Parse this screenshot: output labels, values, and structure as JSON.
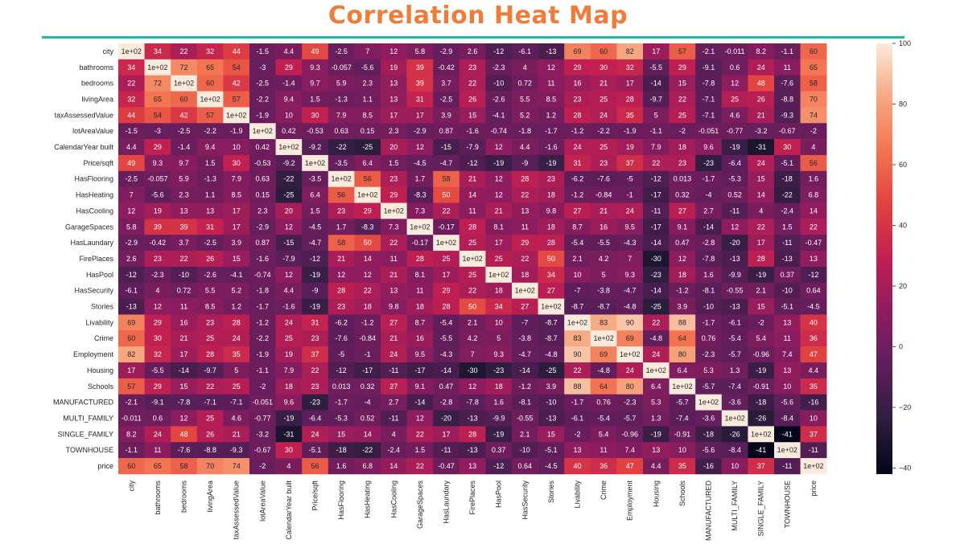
{
  "title": "Correlation Heat Map",
  "colors": {
    "title": "#f07c3c",
    "rule": "#21b9a0"
  },
  "chart_data": {
    "type": "heatmap",
    "title": "Correlation Heat Map",
    "colormap": "rocket",
    "vmin": -42,
    "vmax": 100,
    "colorbar_ticks": [
      100,
      80,
      60,
      40,
      20,
      0,
      -20,
      -40
    ],
    "labels": [
      "city",
      "bathrooms",
      "bedrooms",
      "livingArea",
      "taxAssessedValue",
      "lotAreaValue",
      "CalendarYear built",
      "Price/sqft",
      "HasFlooring",
      "HasHeating",
      "HasCooling",
      "GarageSpaces",
      "HasLaundary",
      "FirePlaces",
      "HasPool",
      "HasSecurity",
      "Stories",
      "Livability",
      "Crime",
      "Employment",
      "Housing",
      "Schools",
      "MANUFACTURED",
      "MULTI_FAMILY",
      "SINGLE_FAMILY",
      "TOWNHOUSE",
      "price"
    ],
    "matrix": [
      [
        "1e+02",
        "34",
        "22",
        "32",
        "44",
        "-1.5",
        "4.4",
        "49",
        "-2.5",
        "7",
        "12",
        "5.8",
        "-2.9",
        "2.6",
        "-12",
        "-6.1",
        "-13",
        "69",
        "60",
        "82",
        "17",
        "57",
        "-2.1",
        "-0.011",
        "8.2",
        "-1.1",
        "60"
      ],
      [
        "34",
        "1e+02",
        "72",
        "65",
        "54",
        "-3",
        "29",
        "9.3",
        "-0.057",
        "-5.6",
        "19",
        "39",
        "-0.42",
        "23",
        "-2.3",
        "4",
        "12",
        "29",
        "30",
        "32",
        "-5.5",
        "29",
        "-9.1",
        "0.6",
        "24",
        "11",
        "65"
      ],
      [
        "22",
        "72",
        "1e+02",
        "60",
        "42",
        "-2.5",
        "-1.4",
        "9.7",
        "5.9",
        "2.3",
        "13",
        "39",
        "3.7",
        "22",
        "-10",
        "0.72",
        "11",
        "16",
        "21",
        "17",
        "-14",
        "15",
        "-7.8",
        "12",
        "48",
        "-7.6",
        "58"
      ],
      [
        "32",
        "65",
        "60",
        "1e+02",
        "57",
        "-2.2",
        "9.4",
        "1.5",
        "-1.3",
        "1.1",
        "13",
        "31",
        "-2.5",
        "26",
        "-2.6",
        "5.5",
        "8.5",
        "23",
        "25",
        "28",
        "-9.7",
        "22",
        "-7.1",
        "25",
        "26",
        "-8.8",
        "70"
      ],
      [
        "44",
        "54",
        "42",
        "57",
        "1e+02",
        "-1.9",
        "10",
        "30",
        "7.9",
        "8.5",
        "17",
        "17",
        "3.9",
        "15",
        "-4.1",
        "5.2",
        "1.2",
        "28",
        "24",
        "35",
        "5",
        "25",
        "-7.1",
        "4.6",
        "21",
        "-9.3",
        "74"
      ],
      [
        "-1.5",
        "-3",
        "-2.5",
        "-2.2",
        "-1.9",
        "1e+02",
        "0.42",
        "-0.53",
        "0.63",
        "0.15",
        "2.3",
        "-2.9",
        "0.87",
        "-1.6",
        "-0.74",
        "-1.8",
        "-1.7",
        "-1.2",
        "-2.2",
        "-1.9",
        "-1.1",
        "-2",
        "-0.051",
        "-0.77",
        "-3.2",
        "-0.67",
        "-2"
      ],
      [
        "4.4",
        "29",
        "-1.4",
        "9.4",
        "10",
        "0.42",
        "1e+02",
        "-9.2",
        "-22",
        "-25",
        "20",
        "12",
        "-15",
        "-7.9",
        "12",
        "4.4",
        "-1.6",
        "24",
        "25",
        "19",
        "7.9",
        "18",
        "9.6",
        "-19",
        "-31",
        "30",
        "4"
      ],
      [
        "49",
        "9.3",
        "9.7",
        "1.5",
        "30",
        "-0.53",
        "-9.2",
        "1e+02",
        "-3.5",
        "6.4",
        "1.5",
        "-4.5",
        "-4.7",
        "-12",
        "-19",
        "-9",
        "-19",
        "31",
        "23",
        "37",
        "22",
        "23",
        "-23",
        "-6.4",
        "24",
        "-5.1",
        "56"
      ],
      [
        "-2.5",
        "-0.057",
        "5.9",
        "-1.3",
        "7.9",
        "0.63",
        "-22",
        "-3.5",
        "1e+02",
        "56",
        "23",
        "1.7",
        "58",
        "21",
        "12",
        "28",
        "23",
        "-6.2",
        "-7.6",
        "-5",
        "-12",
        "0.013",
        "-1.7",
        "-5.3",
        "15",
        "-18",
        "1.6"
      ],
      [
        "7",
        "-5.6",
        "2.3",
        "1.1",
        "8.5",
        "0.15",
        "-25",
        "6.4",
        "56",
        "1e+02",
        "29",
        "-8.3",
        "50",
        "14",
        "12",
        "22",
        "18",
        "-1.2",
        "-0.84",
        "-1",
        "-17",
        "0.32",
        "-4",
        "0.52",
        "14",
        "-22",
        "6.8"
      ],
      [
        "12",
        "19",
        "13",
        "13",
        "17",
        "2.3",
        "20",
        "1.5",
        "23",
        "29",
        "1e+02",
        "7.3",
        "22",
        "11",
        "21",
        "13",
        "9.8",
        "27",
        "21",
        "24",
        "-11",
        "27",
        "2.7",
        "-11",
        "4",
        "-2.4",
        "14"
      ],
      [
        "5.8",
        "39",
        "39",
        "31",
        "17",
        "-2.9",
        "12",
        "-4.5",
        "1.7",
        "-8.3",
        "7.3",
        "1e+02",
        "-0.17",
        "28",
        "8.1",
        "11",
        "18",
        "8.7",
        "16",
        "9.5",
        "-17",
        "9.1",
        "-14",
        "12",
        "22",
        "1.5",
        "22"
      ],
      [
        "-2.9",
        "-0.42",
        "3.7",
        "-2.5",
        "3.9",
        "0.87",
        "-15",
        "-4.7",
        "58",
        "50",
        "22",
        "-0.17",
        "1e+02",
        "25",
        "17",
        "29",
        "28",
        "-5.4",
        "-5.5",
        "-4.3",
        "-14",
        "0.47",
        "-2.8",
        "-20",
        "17",
        "-11",
        "-0.47"
      ],
      [
        "2.6",
        "23",
        "22",
        "26",
        "15",
        "-1.6",
        "-7.9",
        "-12",
        "21",
        "14",
        "11",
        "28",
        "25",
        "1e+02",
        "25",
        "22",
        "50",
        "2.1",
        "4.2",
        "7",
        "-30",
        "12",
        "-7.8",
        "-13",
        "28",
        "-13",
        "13"
      ],
      [
        "-12",
        "-2.3",
        "-10",
        "-2.6",
        "-4.1",
        "-0.74",
        "12",
        "-19",
        "12",
        "12",
        "21",
        "8.1",
        "17",
        "25",
        "1e+02",
        "18",
        "34",
        "10",
        "5",
        "9.3",
        "-23",
        "18",
        "1.6",
        "-9.9",
        "-19",
        "0.37",
        "-12"
      ],
      [
        "-6.1",
        "4",
        "0.72",
        "5.5",
        "5.2",
        "-1.8",
        "4.4",
        "-9",
        "28",
        "22",
        "13",
        "11",
        "29",
        "22",
        "18",
        "1e+02",
        "27",
        "-7",
        "-3.8",
        "-4.7",
        "-14",
        "-1.2",
        "-8.1",
        "-0.55",
        "2.1",
        "-10",
        "0.64"
      ],
      [
        "-13",
        "12",
        "11",
        "8.5",
        "1.2",
        "-1.7",
        "-1.6",
        "-19",
        "23",
        "18",
        "9.8",
        "18",
        "28",
        "50",
        "34",
        "27",
        "1e+02",
        "-8.7",
        "-8.7",
        "-4.8",
        "-25",
        "3.9",
        "-10",
        "-13",
        "15",
        "-5.1",
        "-4.5"
      ],
      [
        "69",
        "29",
        "16",
        "23",
        "28",
        "-1.2",
        "24",
        "31",
        "-6.2",
        "-1.2",
        "27",
        "8.7",
        "-5.4",
        "2.1",
        "10",
        "-7",
        "-8.7",
        "1e+02",
        "83",
        "90",
        "22",
        "88",
        "-1.7",
        "-6.1",
        "-2",
        "13",
        "40"
      ],
      [
        "60",
        "30",
        "21",
        "25",
        "24",
        "-2.2",
        "25",
        "23",
        "-7.6",
        "-0.84",
        "21",
        "16",
        "-5.5",
        "4.2",
        "5",
        "-3.8",
        "-8.7",
        "83",
        "1e+02",
        "69",
        "-4.8",
        "64",
        "0.76",
        "-5.4",
        "5.4",
        "11",
        "36"
      ],
      [
        "82",
        "32",
        "17",
        "28",
        "35",
        "-1.9",
        "19",
        "37",
        "-5",
        "-1",
        "24",
        "9.5",
        "-4.3",
        "7",
        "9.3",
        "-4.7",
        "-4.8",
        "90",
        "69",
        "1e+02",
        "24",
        "80",
        "-2.3",
        "-5.7",
        "-0.96",
        "7.4",
        "47"
      ],
      [
        "17",
        "-5.5",
        "-14",
        "-9.7",
        "5",
        "-1.1",
        "7.9",
        "22",
        "-12",
        "-17",
        "-11",
        "-17",
        "-14",
        "-30",
        "-23",
        "-14",
        "-25",
        "22",
        "-4.8",
        "24",
        "1e+02",
        "6.4",
        "5.3",
        "1.3",
        "-19",
        "13",
        "4.4"
      ],
      [
        "57",
        "29",
        "15",
        "22",
        "25",
        "-2",
        "18",
        "23",
        "0.013",
        "0.32",
        "27",
        "9.1",
        "0.47",
        "12",
        "18",
        "-1.2",
        "3.9",
        "88",
        "64",
        "80",
        "6.4",
        "1e+02",
        "-5.7",
        "-7.4",
        "-0.91",
        "10",
        "35"
      ],
      [
        "-2.1",
        "-9.1",
        "-7.8",
        "-7.1",
        "-7.1",
        "-0.051",
        "9.6",
        "-23",
        "-1.7",
        "-4",
        "2.7",
        "-14",
        "-2.8",
        "-7.8",
        "1.6",
        "-8.1",
        "-10",
        "-1.7",
        "0.76",
        "-2.3",
        "5.3",
        "-5.7",
        "1e+02",
        "-3.6",
        "-18",
        "-5.6",
        "-16"
      ],
      [
        "-0.011",
        "0.6",
        "12",
        "25",
        "4.6",
        "-0.77",
        "-19",
        "-6.4",
        "-5.3",
        "0.52",
        "-11",
        "12",
        "-20",
        "-13",
        "-9.9",
        "-0.55",
        "-13",
        "-6.1",
        "-5.4",
        "-5.7",
        "1.3",
        "-7.4",
        "-3.6",
        "1e+02",
        "-26",
        "-8.4",
        "10"
      ],
      [
        "8.2",
        "24",
        "48",
        "26",
        "21",
        "-3.2",
        "-31",
        "24",
        "15",
        "14",
        "4",
        "22",
        "17",
        "28",
        "-19",
        "2.1",
        "15",
        "-2",
        "5.4",
        "-0.96",
        "-19",
        "-0.91",
        "-18",
        "-26",
        "1e+02",
        "-41",
        "37"
      ],
      [
        "-1.1",
        "11",
        "-7.6",
        "-8.8",
        "-9.3",
        "-0.67",
        "30",
        "-5.1",
        "-18",
        "-22",
        "-2.4",
        "1.5",
        "-11",
        "-13",
        "0.37",
        "-10",
        "-5.1",
        "13",
        "11",
        "7.4",
        "13",
        "10",
        "-5.6",
        "-8.4",
        "-41",
        "1e+02",
        "-11"
      ],
      [
        "60",
        "65",
        "58",
        "70",
        "74",
        "-2",
        "4",
        "56",
        "1.6",
        "6.8",
        "14",
        "22",
        "-0.47",
        "13",
        "-12",
        "0.64",
        "-4.5",
        "40",
        "36",
        "47",
        "4.4",
        "35",
        "-16",
        "10",
        "37",
        "-11",
        "1e+02"
      ]
    ]
  }
}
